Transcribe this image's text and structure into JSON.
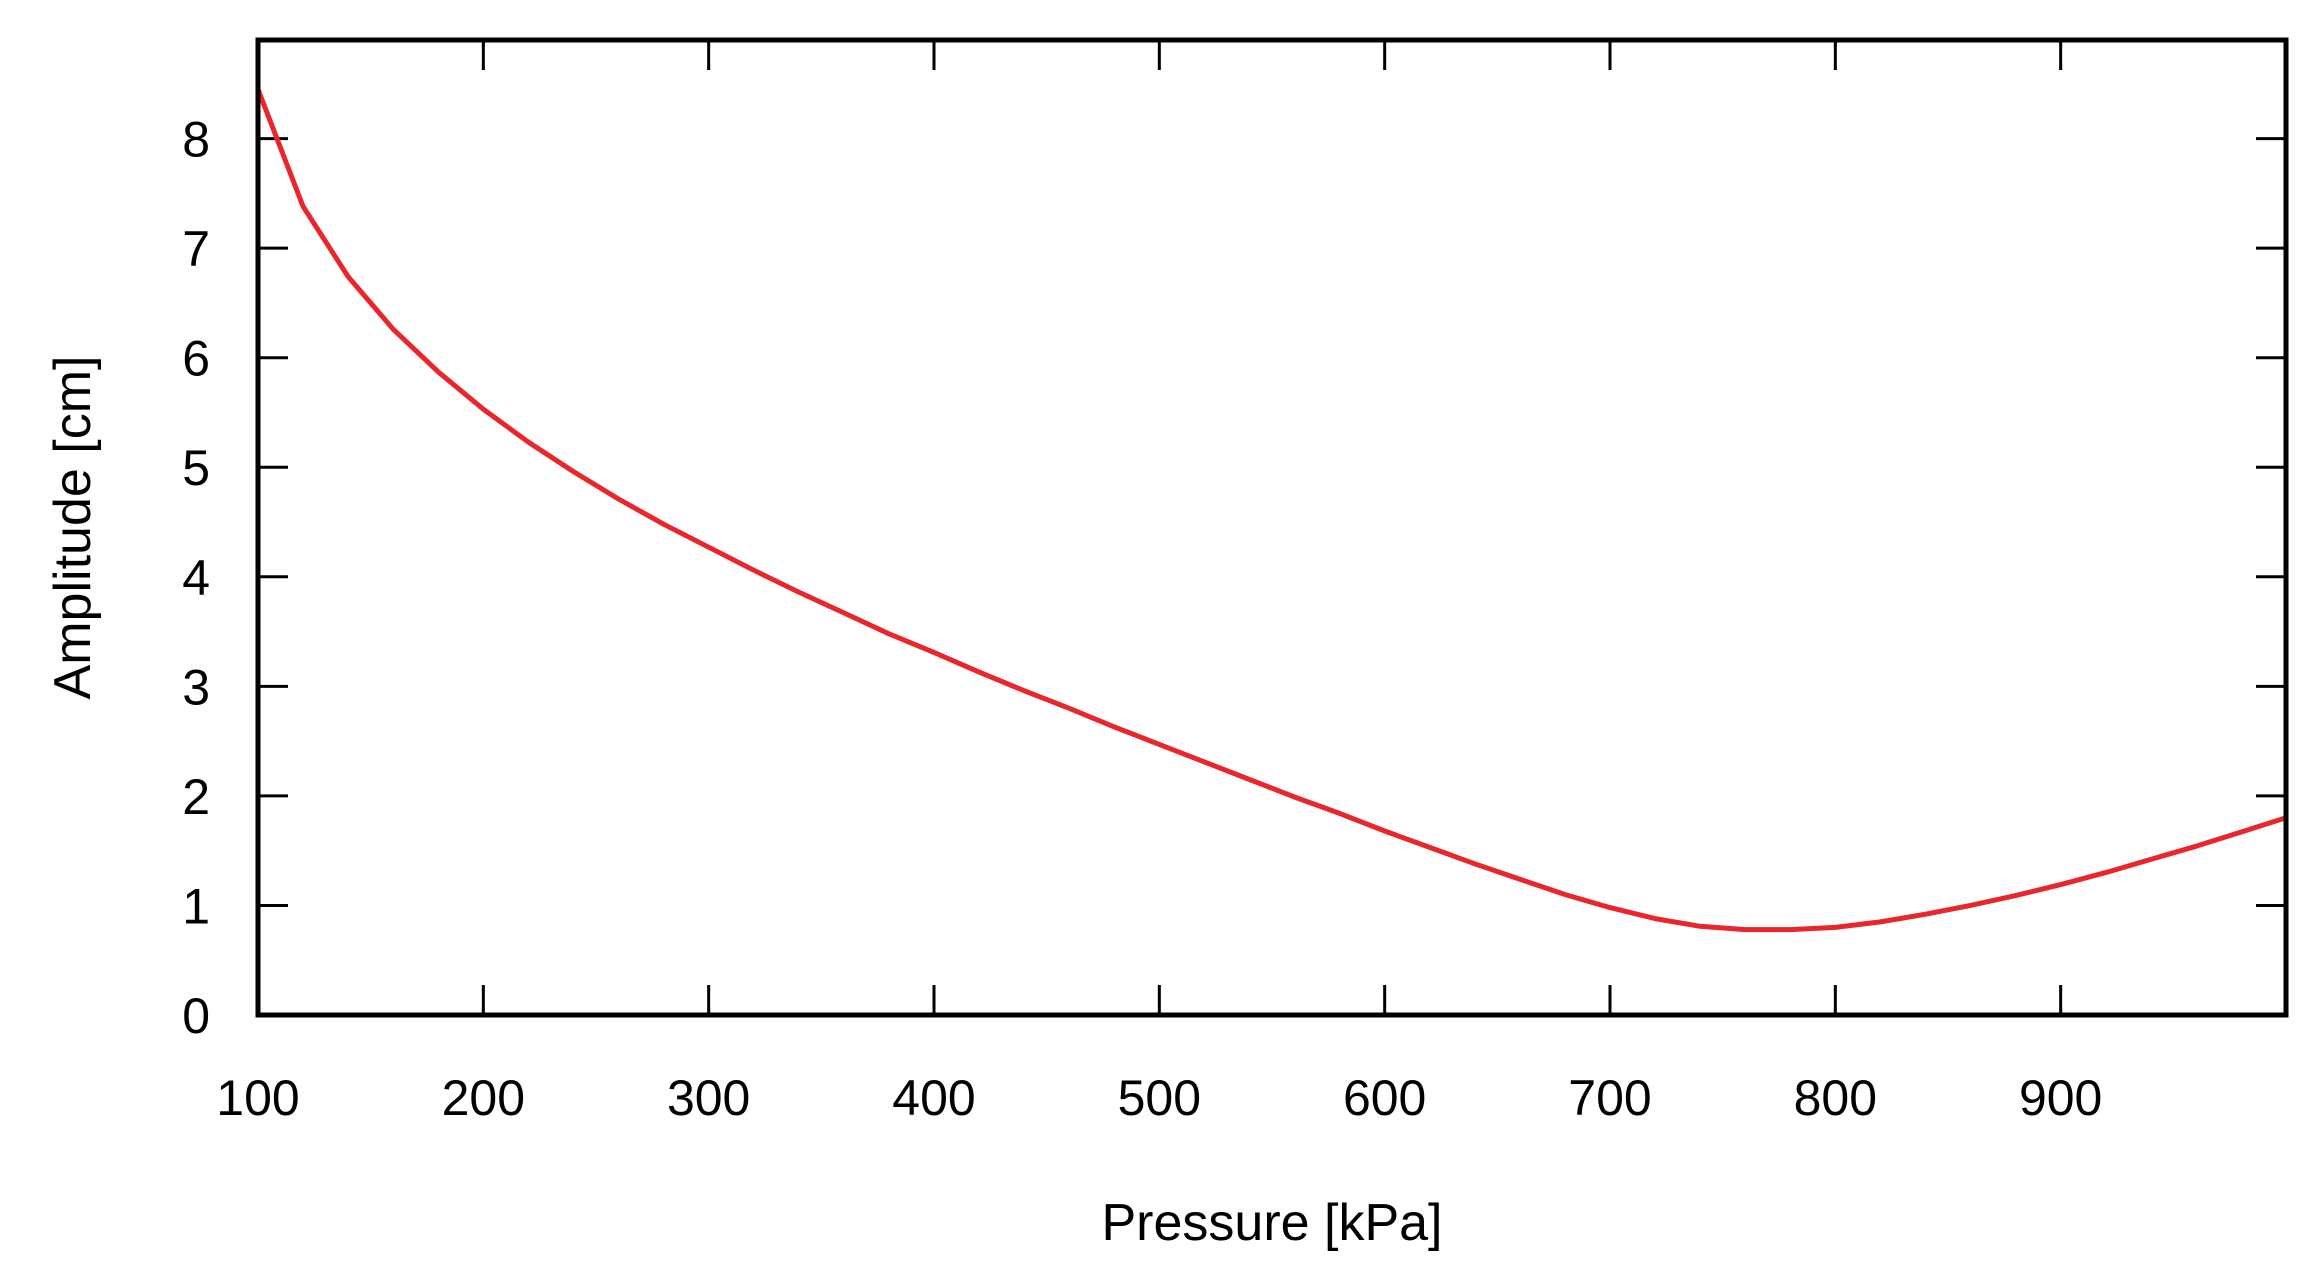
{
  "chart_data": {
    "type": "line",
    "title": "",
    "xlabel": "Pressure [kPa]",
    "ylabel": "Amplitude [cm]",
    "xlim": [
      100,
      1000
    ],
    "ylim": [
      0,
      8.9
    ],
    "xticks": [
      100,
      200,
      300,
      400,
      500,
      600,
      700,
      800,
      900
    ],
    "yticks": [
      0,
      1,
      2,
      3,
      4,
      5,
      6,
      7,
      8
    ],
    "grid": false,
    "series": [
      {
        "name": "amplitude",
        "color": "#e8262b",
        "x": [
          100,
          120,
          140,
          160,
          180,
          200,
          220,
          240,
          260,
          280,
          300,
          320,
          340,
          360,
          380,
          400,
          420,
          440,
          460,
          480,
          500,
          520,
          540,
          560,
          580,
          600,
          620,
          640,
          660,
          680,
          700,
          720,
          740,
          760,
          780,
          800,
          820,
          840,
          860,
          880,
          900,
          920,
          940,
          960,
          980,
          1000
        ],
        "y": [
          8.45,
          7.38,
          6.74,
          6.26,
          5.87,
          5.53,
          5.23,
          4.96,
          4.71,
          4.48,
          4.27,
          4.06,
          3.86,
          3.67,
          3.48,
          3.31,
          3.13,
          2.96,
          2.8,
          2.63,
          2.47,
          2.31,
          2.15,
          1.99,
          1.84,
          1.68,
          1.53,
          1.38,
          1.24,
          1.1,
          0.98,
          0.88,
          0.81,
          0.78,
          0.78,
          0.8,
          0.85,
          0.92,
          1.0,
          1.09,
          1.19,
          1.3,
          1.42,
          1.54,
          1.67,
          1.8
        ]
      }
    ]
  }
}
